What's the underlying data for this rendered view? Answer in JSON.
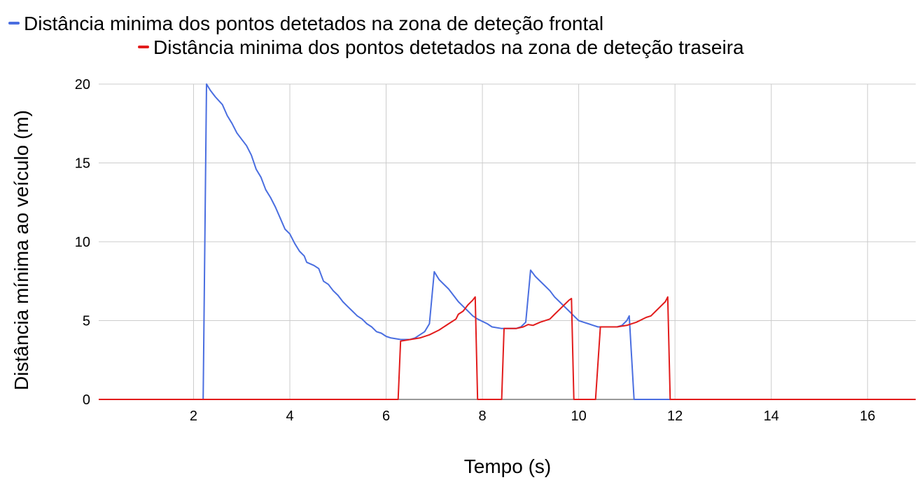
{
  "chart_data": {
    "type": "line",
    "title": "",
    "xlabel": "Tempo (s)",
    "ylabel": "Distância mínima ao veículo (m)",
    "xlim": [
      0.03,
      17
    ],
    "ylim": [
      0,
      20
    ],
    "xticks": [
      2,
      4,
      6,
      8,
      10,
      12,
      14,
      16
    ],
    "yticks": [
      0,
      5,
      10,
      15,
      20
    ],
    "grid": true,
    "legend_position": "top",
    "series": [
      {
        "name": "Distância minima dos pontos detetados na zona de deteção frontal",
        "color": "#4a6ee0",
        "points": [
          [
            0.03,
            0
          ],
          [
            2.2,
            0
          ],
          [
            2.27,
            20
          ],
          [
            2.35,
            19.6
          ],
          [
            2.45,
            19.2
          ],
          [
            2.6,
            18.7
          ],
          [
            2.7,
            18.0
          ],
          [
            2.8,
            17.5
          ],
          [
            2.9,
            16.9
          ],
          [
            3.0,
            16.5
          ],
          [
            3.1,
            16.1
          ],
          [
            3.2,
            15.5
          ],
          [
            3.3,
            14.6
          ],
          [
            3.4,
            14.1
          ],
          [
            3.5,
            13.3
          ],
          [
            3.6,
            12.8
          ],
          [
            3.7,
            12.2
          ],
          [
            3.8,
            11.5
          ],
          [
            3.9,
            10.8
          ],
          [
            4.0,
            10.5
          ],
          [
            4.1,
            9.9
          ],
          [
            4.2,
            9.4
          ],
          [
            4.3,
            9.1
          ],
          [
            4.35,
            8.7
          ],
          [
            4.5,
            8.5
          ],
          [
            4.6,
            8.3
          ],
          [
            4.7,
            7.5
          ],
          [
            4.8,
            7.3
          ],
          [
            4.9,
            6.9
          ],
          [
            5.0,
            6.6
          ],
          [
            5.1,
            6.2
          ],
          [
            5.2,
            5.9
          ],
          [
            5.3,
            5.6
          ],
          [
            5.4,
            5.3
          ],
          [
            5.5,
            5.1
          ],
          [
            5.6,
            4.8
          ],
          [
            5.7,
            4.6
          ],
          [
            5.8,
            4.3
          ],
          [
            5.9,
            4.2
          ],
          [
            6.0,
            4.0
          ],
          [
            6.1,
            3.9
          ],
          [
            6.2,
            3.85
          ],
          [
            6.3,
            3.8
          ],
          [
            6.5,
            3.8
          ],
          [
            6.6,
            3.9
          ],
          [
            6.8,
            4.3
          ],
          [
            6.9,
            4.8
          ],
          [
            7.0,
            8.1
          ],
          [
            7.1,
            7.6
          ],
          [
            7.3,
            7.0
          ],
          [
            7.4,
            6.6
          ],
          [
            7.5,
            6.2
          ],
          [
            7.6,
            5.9
          ],
          [
            7.7,
            5.6
          ],
          [
            7.8,
            5.3
          ],
          [
            7.9,
            5.1
          ],
          [
            8.1,
            4.8
          ],
          [
            8.2,
            4.6
          ],
          [
            8.4,
            4.5
          ],
          [
            8.7,
            4.5
          ],
          [
            8.8,
            4.6
          ],
          [
            8.9,
            4.9
          ],
          [
            9.0,
            8.2
          ],
          [
            9.1,
            7.8
          ],
          [
            9.3,
            7.2
          ],
          [
            9.4,
            6.9
          ],
          [
            9.5,
            6.5
          ],
          [
            9.6,
            6.2
          ],
          [
            9.7,
            5.9
          ],
          [
            9.8,
            5.6
          ],
          [
            9.9,
            5.3
          ],
          [
            10.0,
            5.0
          ],
          [
            10.1,
            4.9
          ],
          [
            10.2,
            4.8
          ],
          [
            10.3,
            4.7
          ],
          [
            10.4,
            4.6
          ],
          [
            10.6,
            4.6
          ],
          [
            10.8,
            4.6
          ],
          [
            10.9,
            4.7
          ],
          [
            11.0,
            5.0
          ],
          [
            11.05,
            5.3
          ],
          [
            11.15,
            0
          ],
          [
            17,
            0
          ]
        ]
      },
      {
        "name": "Distância minima dos pontos detetados na zona de deteção traseira",
        "color": "#e21c1c",
        "points": [
          [
            0.03,
            0
          ],
          [
            6.25,
            0
          ],
          [
            6.3,
            3.7
          ],
          [
            6.5,
            3.8
          ],
          [
            6.7,
            3.9
          ],
          [
            6.9,
            4.1
          ],
          [
            7.1,
            4.4
          ],
          [
            7.3,
            4.8
          ],
          [
            7.45,
            5.1
          ],
          [
            7.5,
            5.4
          ],
          [
            7.6,
            5.6
          ],
          [
            7.7,
            6.0
          ],
          [
            7.8,
            6.3
          ],
          [
            7.85,
            6.5
          ],
          [
            7.9,
            0
          ],
          [
            8.4,
            0
          ],
          [
            8.45,
            4.5
          ],
          [
            8.7,
            4.5
          ],
          [
            8.85,
            4.6
          ],
          [
            8.95,
            4.75
          ],
          [
            9.05,
            4.7
          ],
          [
            9.2,
            4.9
          ],
          [
            9.4,
            5.1
          ],
          [
            9.5,
            5.4
          ],
          [
            9.6,
            5.7
          ],
          [
            9.7,
            6.0
          ],
          [
            9.8,
            6.3
          ],
          [
            9.85,
            6.4
          ],
          [
            9.9,
            0
          ],
          [
            10.35,
            0
          ],
          [
            10.45,
            4.6
          ],
          [
            10.6,
            4.6
          ],
          [
            10.8,
            4.6
          ],
          [
            11.0,
            4.7
          ],
          [
            11.2,
            4.9
          ],
          [
            11.4,
            5.2
          ],
          [
            11.5,
            5.3
          ],
          [
            11.6,
            5.6
          ],
          [
            11.7,
            5.9
          ],
          [
            11.8,
            6.2
          ],
          [
            11.85,
            6.5
          ],
          [
            11.9,
            0
          ],
          [
            17,
            0
          ]
        ]
      }
    ]
  }
}
